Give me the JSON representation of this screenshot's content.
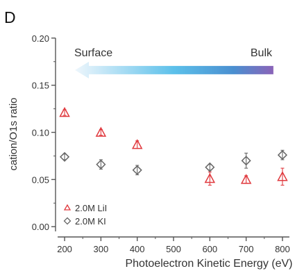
{
  "chart_data": {
    "type": "scatter",
    "panel_label": "D",
    "xlabel": "Photoelectron Kinetic Energy (eV)",
    "ylabel": "cation/O1s ratio",
    "xlim": [
      175,
      825
    ],
    "ylim": [
      -0.005,
      0.205
    ],
    "xticks": [
      200,
      300,
      400,
      500,
      600,
      700,
      800
    ],
    "yticks": [
      0.0,
      0.05,
      0.1,
      0.15,
      0.2
    ],
    "ytick_labels": [
      "0.00",
      "0.05",
      "0.10",
      "0.15",
      "0.20"
    ],
    "annotation": {
      "left_label": "Surface",
      "right_label": "Bulk",
      "arrow_from_x": 775,
      "arrow_to_x": 175,
      "arrow_y": 0.166
    },
    "legend_position": "bottom-left",
    "series": [
      {
        "name": "2.0M LiI",
        "marker": "triangle",
        "color": "#e0393e",
        "points": [
          {
            "x": 200,
            "y": 0.121,
            "err": 0.003
          },
          {
            "x": 300,
            "y": 0.1,
            "err": 0.003
          },
          {
            "x": 400,
            "y": 0.087,
            "err": 0.004
          },
          {
            "x": 600,
            "y": 0.051,
            "err": 0.007
          },
          {
            "x": 700,
            "y": 0.05,
            "err": 0.004
          },
          {
            "x": 800,
            "y": 0.053,
            "err": 0.009
          }
        ]
      },
      {
        "name": "2.0M KI",
        "marker": "diamond",
        "color": "#666666",
        "points": [
          {
            "x": 200,
            "y": 0.074,
            "err": 0.003
          },
          {
            "x": 300,
            "y": 0.066,
            "err": 0.005
          },
          {
            "x": 400,
            "y": 0.06,
            "err": 0.005
          },
          {
            "x": 600,
            "y": 0.063,
            "err": 0.003
          },
          {
            "x": 700,
            "y": 0.07,
            "err": 0.008
          },
          {
            "x": 800,
            "y": 0.076,
            "err": 0.005
          }
        ]
      }
    ]
  }
}
